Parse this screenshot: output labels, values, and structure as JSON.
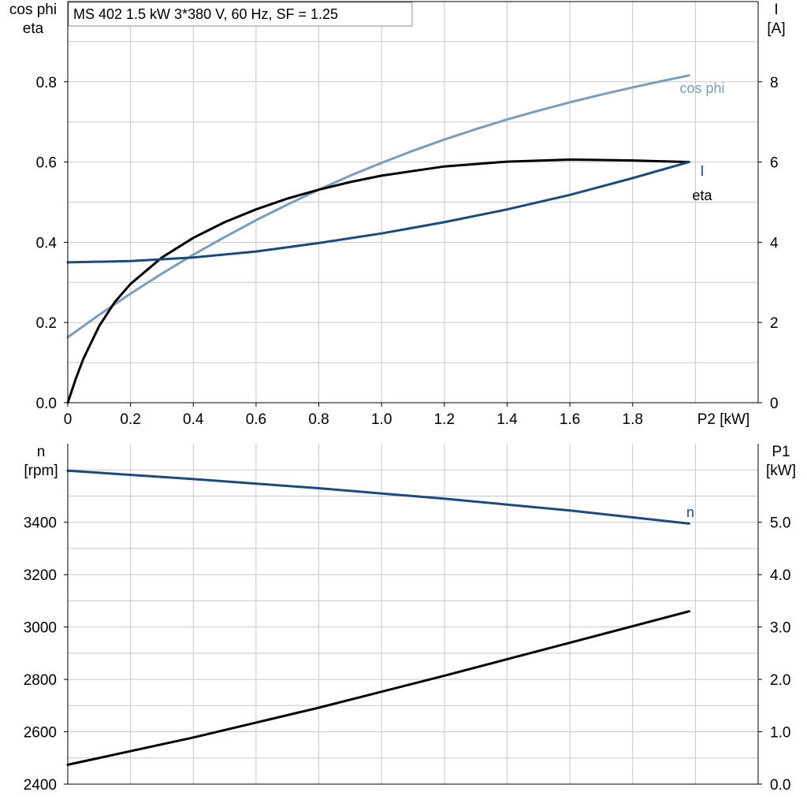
{
  "header": {
    "text": "MS 402   1.5 kW   3*380 V, 60 Hz, SF = 1.25"
  },
  "colors": {
    "cos_phi": "#7a9cbd",
    "current": "#1b4a7c",
    "eta": "#000000",
    "speed": "#1b4a7c",
    "p1": "#000000",
    "grid": "#c8c8c8"
  },
  "chart_data": [
    {
      "type": "line",
      "xlabel": "P2 [kW]",
      "ylabel_left": [
        "cos phi",
        "eta"
      ],
      "ylabel_right": [
        "I",
        "[A]"
      ],
      "xlim": [
        0,
        2.2
      ],
      "ylim_left": [
        0,
        1.0
      ],
      "ylim_right": [
        0,
        10
      ],
      "grid": true,
      "x_ticks": [
        "0",
        "0.2",
        "0.4",
        "0.6",
        "0.8",
        "1.0",
        "1.2",
        "1.4",
        "1.6",
        "1.8"
      ],
      "y_left_ticks": [
        "0.0",
        "0.2",
        "0.4",
        "0.6",
        "0.8"
      ],
      "y_right_ticks": [
        "0",
        "2",
        "4",
        "6",
        "8"
      ],
      "series": [
        {
          "name": "cos phi",
          "axis": "left",
          "x": [
            0,
            0.1,
            0.2,
            0.3,
            0.4,
            0.5,
            0.6,
            0.7,
            0.8,
            0.9,
            1.0,
            1.1,
            1.2,
            1.3,
            1.4,
            1.5,
            1.6,
            1.7,
            1.8,
            1.9,
            1.98
          ],
          "y": [
            0.163,
            0.219,
            0.272,
            0.322,
            0.369,
            0.413,
            0.455,
            0.494,
            0.531,
            0.566,
            0.598,
            0.628,
            0.656,
            0.682,
            0.706,
            0.728,
            0.749,
            0.768,
            0.786,
            0.803,
            0.816
          ]
        },
        {
          "name": "eta",
          "axis": "left",
          "x": [
            0,
            0.025,
            0.05,
            0.1,
            0.15,
            0.2,
            0.3,
            0.4,
            0.5,
            0.6,
            0.7,
            0.8,
            0.9,
            1.0,
            1.2,
            1.4,
            1.6,
            1.8,
            1.98
          ],
          "y": [
            0.0,
            0.059,
            0.11,
            0.191,
            0.251,
            0.296,
            0.362,
            0.411,
            0.45,
            0.482,
            0.509,
            0.531,
            0.55,
            0.566,
            0.589,
            0.601,
            0.606,
            0.604,
            0.6
          ]
        },
        {
          "name": "I",
          "axis": "right",
          "x": [
            0,
            0.2,
            0.4,
            0.6,
            0.8,
            1.0,
            1.2,
            1.4,
            1.6,
            1.8,
            1.98
          ],
          "y": [
            3.5,
            3.53,
            3.62,
            3.77,
            3.98,
            4.22,
            4.5,
            4.82,
            5.18,
            5.6,
            6.0
          ]
        }
      ]
    },
    {
      "type": "line",
      "xlabel": "",
      "ylabel_left": [
        "n",
        "[rpm]"
      ],
      "ylabel_right": [
        "P1",
        "[kW]"
      ],
      "xlim": [
        0,
        2.2
      ],
      "ylim_left": [
        2400,
        3700
      ],
      "ylim_right": [
        0.0,
        6.5
      ],
      "grid": true,
      "y_left_ticks": [
        "2400",
        "2600",
        "2800",
        "3000",
        "3200",
        "3400"
      ],
      "y_right_ticks": [
        "0.0",
        "1.0",
        "2.0",
        "3.0",
        "4.0",
        "5.0"
      ],
      "series": [
        {
          "name": "n",
          "axis": "left",
          "x": [
            0,
            0.4,
            0.8,
            1.2,
            1.6,
            1.98
          ],
          "y": [
            3597,
            3565,
            3530,
            3490,
            3445,
            3395
          ]
        },
        {
          "name": "",
          "axis": "right",
          "x": [
            0,
            0.4,
            0.8,
            1.2,
            1.6,
            1.98
          ],
          "y": [
            0.37,
            0.89,
            1.46,
            2.07,
            2.7,
            3.3
          ]
        }
      ]
    }
  ]
}
